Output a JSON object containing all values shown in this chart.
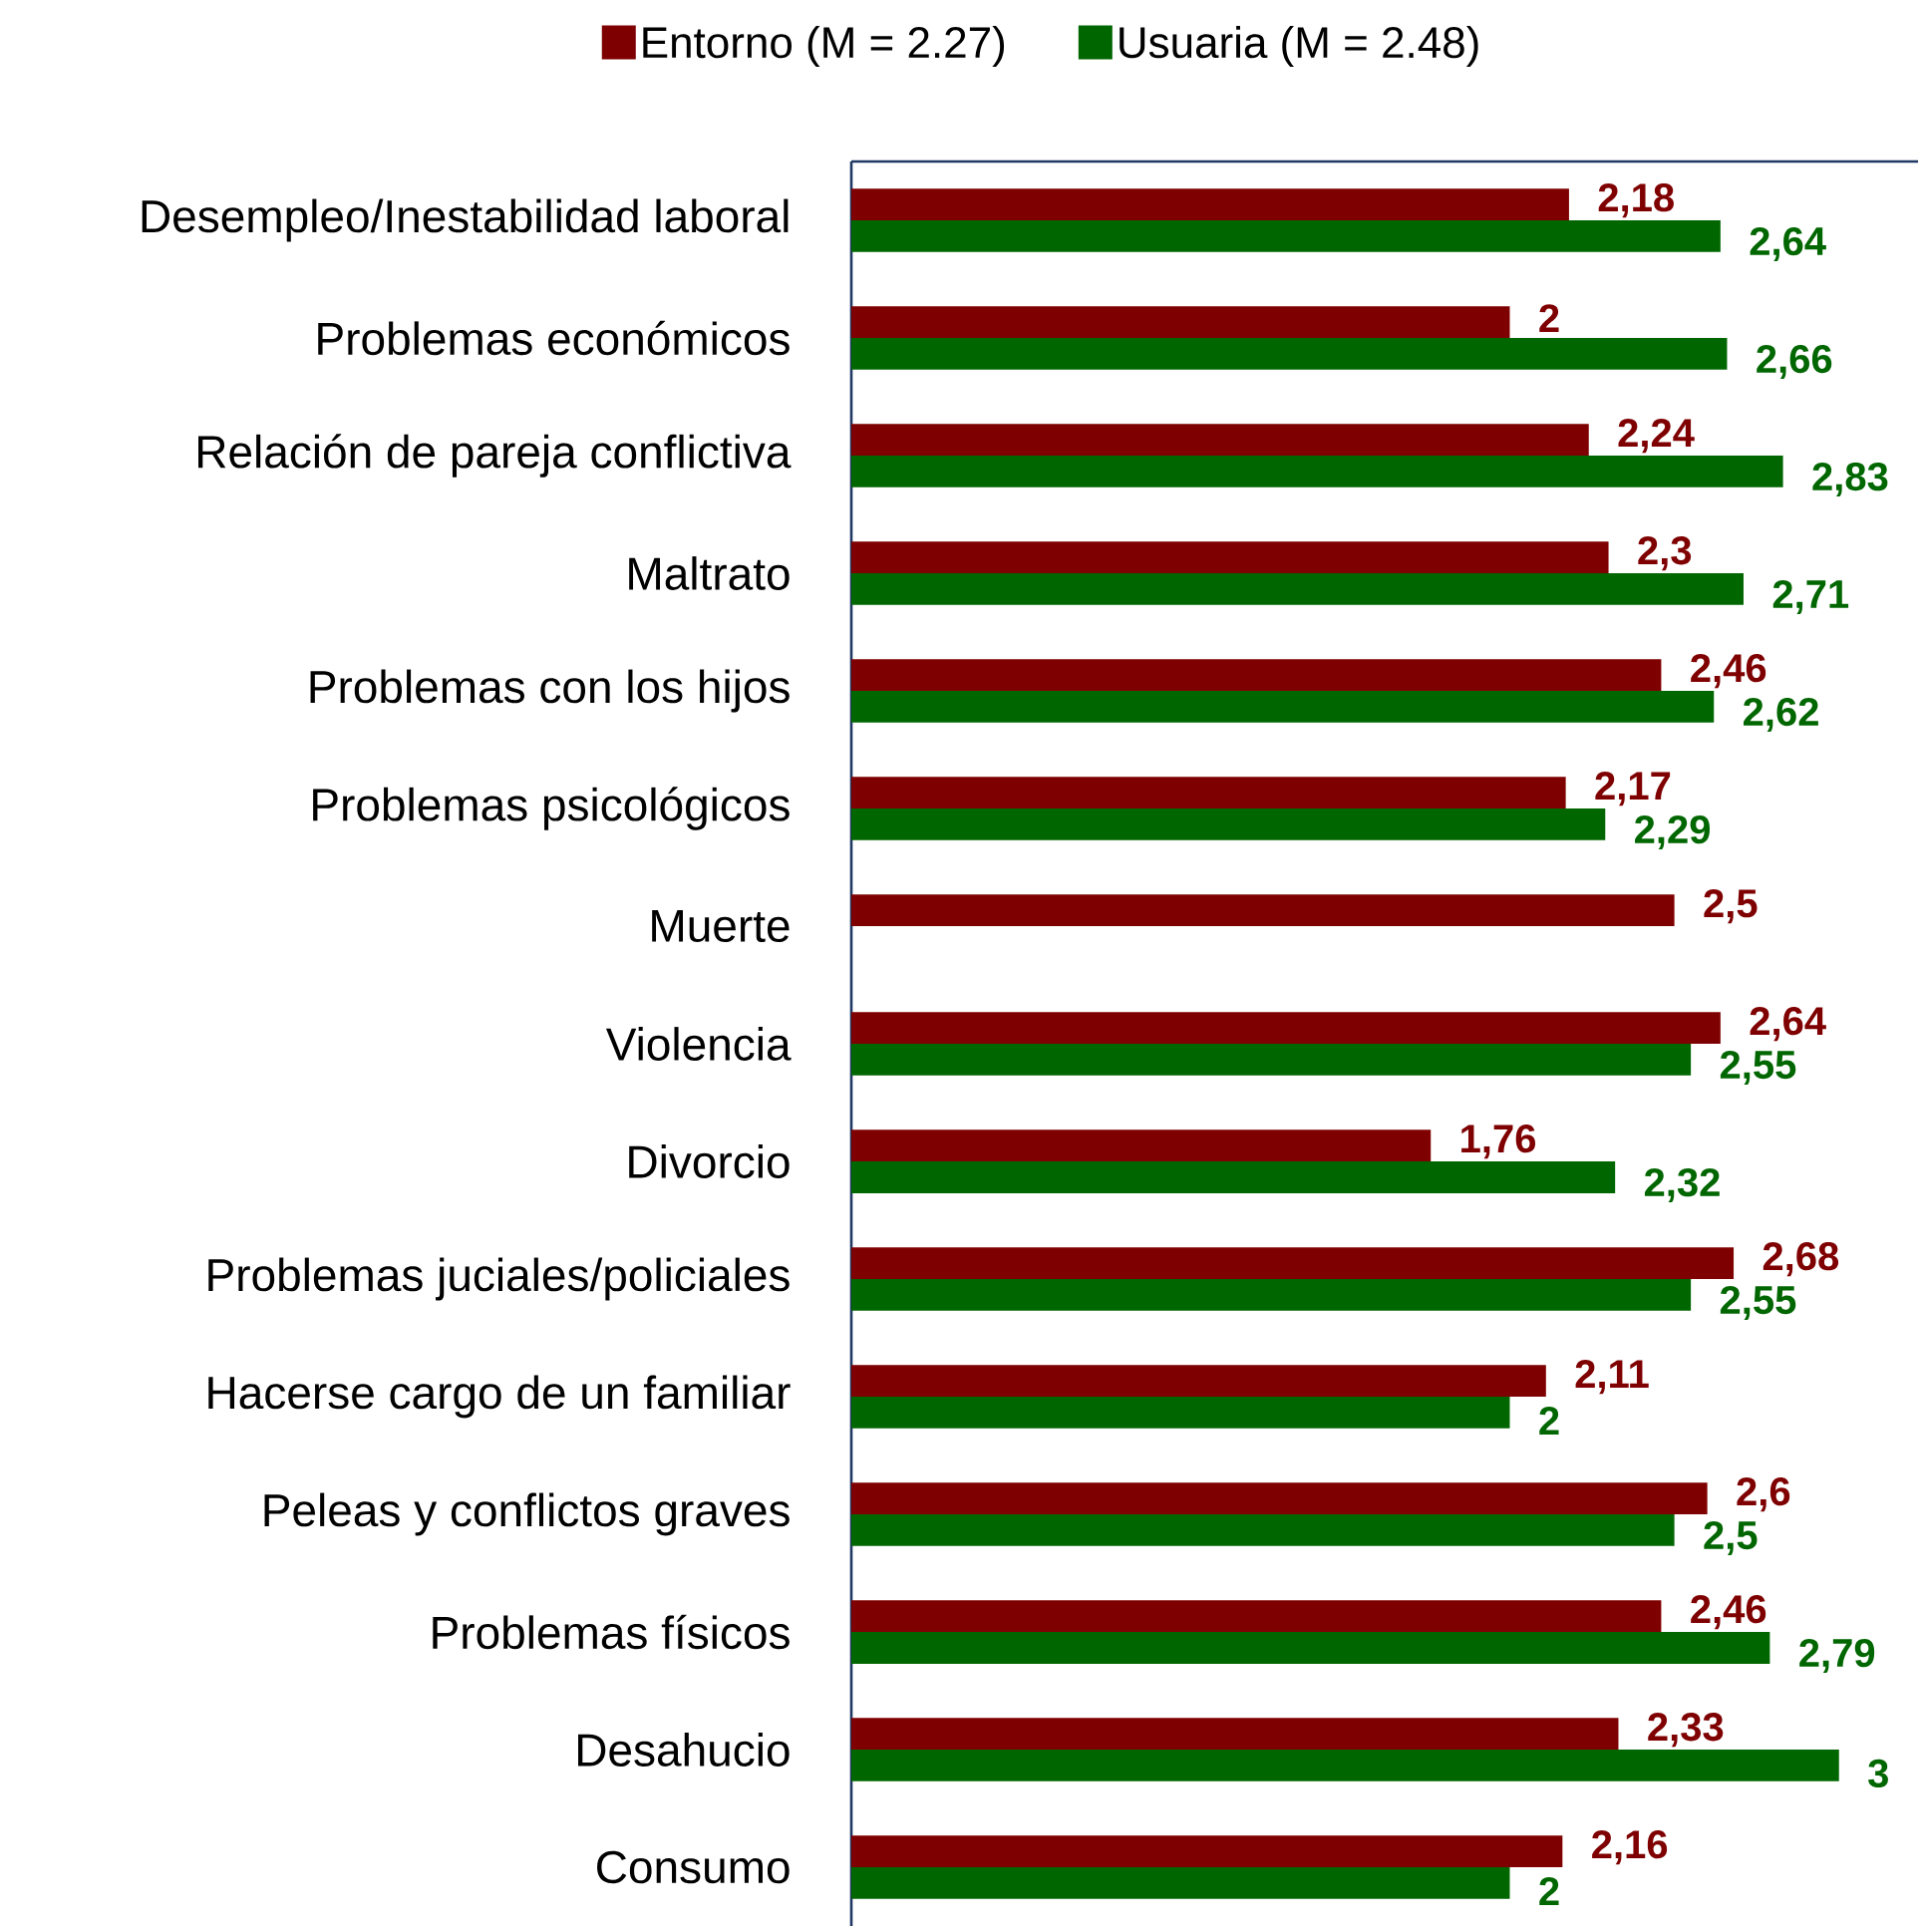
{
  "chart_data": {
    "type": "bar",
    "orientation": "horizontal",
    "tick_labels": "y",
    "legend": "top",
    "categories": [
      "Desempleo/Inestabilidad laboral",
      "Problemas económicos",
      "Relación de pareja conflictiva",
      "Maltrato",
      "Problemas con los hijos",
      "Problemas psicológicos",
      "Muerte",
      "Violencia",
      "Divorcio",
      "Problemas juciales/policiales",
      "Hacerse cargo de un familiar",
      "Peleas y conflictos graves",
      "Problemas físicos",
      "Desahucio",
      "Consumo"
    ],
    "series": [
      {
        "name": "Entorno (M = 2.27)",
        "color": "#7f0000",
        "values": [
          2.18,
          2,
          2.24,
          2.3,
          2.46,
          2.17,
          2.5,
          2.64,
          1.76,
          2.68,
          2.11,
          2.6,
          2.46,
          2.33,
          2.16
        ],
        "value_labels": [
          "2,18",
          "2",
          "2,24",
          "2,3",
          "2,46",
          "2,17",
          "2,5",
          "2,64",
          "1,76",
          "2,68",
          "2,11",
          "2,6",
          "2,46",
          "2,33",
          "2,16"
        ]
      },
      {
        "name": "Usuaria (M = 2.48)",
        "color": "#006600",
        "values": [
          2.64,
          2.66,
          2.83,
          2.71,
          2.62,
          2.29,
          null,
          2.55,
          2.32,
          2.55,
          2,
          2.5,
          2.79,
          3,
          2
        ],
        "value_labels": [
          "2,64",
          "2,66",
          "2,83",
          "2,71",
          "2,62",
          "2,29",
          null,
          "2,55",
          "2,32",
          "2,55",
          "2",
          "2,5",
          "2,79",
          "3",
          "2"
        ]
      }
    ]
  }
}
